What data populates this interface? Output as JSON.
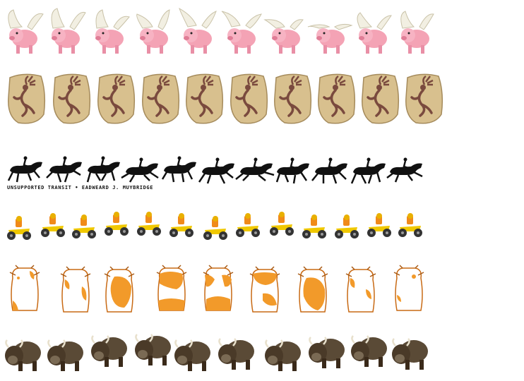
{
  "sheet": {
    "rows": [
      {
        "name": "flying-pig-row",
        "frames": 10
      },
      {
        "name": "kokopelli-stone-row",
        "frames": 10
      },
      {
        "name": "galloping-horse-row",
        "frames": 11
      },
      {
        "name": "atv-rider-row",
        "frames": 12
      },
      {
        "name": "hamster-row",
        "frames": 9
      },
      {
        "name": "bison-row",
        "frames": 10
      }
    ],
    "horse_caption": "UNSUPPORTED TRANSIT • EADWEARD J. MUYBRIDGE"
  },
  "colors": {
    "pig": "#f4a3b5",
    "wing": "#f2efe2",
    "stone": "#d8c08e",
    "kokopelli": "#7a4a3e",
    "horse": "#111111",
    "atv": "#f0c800",
    "rider": "#f08a1a",
    "hamster": "#f29a2a",
    "bison": "#5a4a36"
  }
}
